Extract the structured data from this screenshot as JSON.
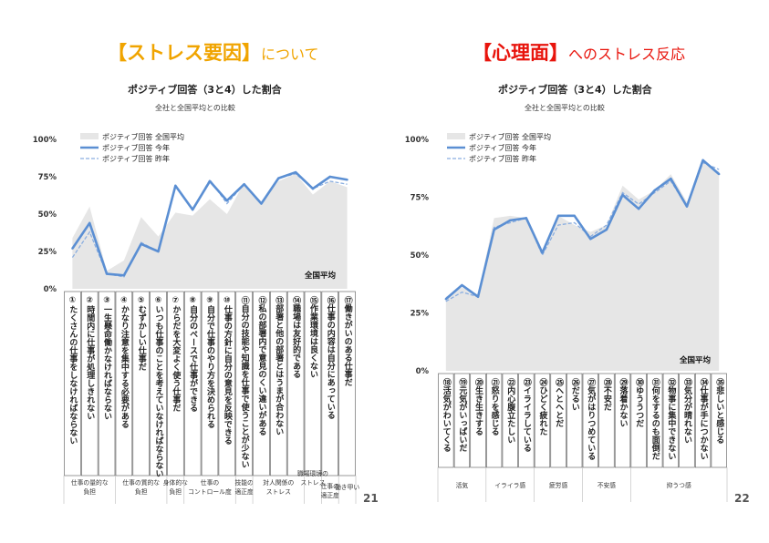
{
  "left": {
    "heading_strong": "【ストレス要因】",
    "heading_rest": "について",
    "chart_title": "ポジティブ回答（3と4）した割合",
    "chart_subtitle": "全社と全国平均との比較",
    "page_number": "21"
  },
  "right": {
    "heading_strong": "【心理面】",
    "heading_rest": "へのストレス反応",
    "chart_title": "ポジティブ回答（3と4）した割合",
    "chart_subtitle": "全社と全国平均との比較",
    "page_number": "22"
  },
  "colors": {
    "area": "#e6e6e6",
    "this_year": "#5b8fd3",
    "last_year": "#8aaee0",
    "text": "#222222"
  },
  "chart_data": [
    {
      "type": "line",
      "ylim": [
        0,
        100
      ],
      "yticks": [
        "0%",
        "25%",
        "50%",
        "75%",
        "100%"
      ],
      "annotation": "全国平均",
      "legend_position": "top-left",
      "series": [
        {
          "name": "ポジティブ回答 全国平均",
          "style": "area",
          "values": [
            34,
            55,
            12,
            19,
            48,
            35,
            51,
            49,
            60,
            50,
            71,
            58,
            72,
            77,
            63,
            72,
            68
          ]
        },
        {
          "name": "ポジティブ回答 今年",
          "style": "solid",
          "values": [
            27,
            44,
            10,
            9,
            30,
            25,
            69,
            53,
            72,
            59,
            70,
            57,
            74,
            78,
            67,
            75,
            73
          ]
        },
        {
          "name": "ポジティブ回答 昨年",
          "style": "dashed",
          "values": [
            21,
            38,
            10,
            8,
            31,
            25,
            69,
            53,
            73,
            57,
            70,
            57,
            74,
            77,
            67,
            72,
            70
          ]
        }
      ],
      "categories": [
        "①たくさんの仕事をしなければならない",
        "②時間内に仕事が処理しきれない",
        "③一生懸命働かなければならない",
        "④かなり注意を集中する必要がある",
        "⑤むずかしい仕事だ",
        "⑥いつも仕事のことを考えていなければならない",
        "⑦からだを大変よく使う仕事だ",
        "⑧自分のペースで仕事ができる",
        "⑨自分で仕事のやり方を決められる",
        "⑩仕事の方針に自分の意見を反映できる",
        "⑪自分の技能や知識を仕事で使うことが少ない",
        "⑫私の部署内で意見のくい違いがある",
        "⑬部署と他の部署とはうまが合わない",
        "⑭職場は友好的である",
        "⑮作業環境は良くない",
        "⑯仕事の内容は自分にあっている",
        "⑰働きがいのある仕事だ"
      ],
      "groups": [
        {
          "label": [
            "仕事の量的な",
            "負担"
          ],
          "from": 0,
          "to": 2
        },
        {
          "label": [
            "仕事の質的な",
            "負担"
          ],
          "from": 3,
          "to": 5
        },
        {
          "label": [
            "身体的な",
            "負担"
          ],
          "from": 6,
          "to": 6
        },
        {
          "label": [
            "仕事の",
            "コントロール度"
          ],
          "from": 7,
          "to": 9
        },
        {
          "label": [
            "技能の",
            "適正度"
          ],
          "from": 10,
          "to": 10
        },
        {
          "label": [
            "対人関係の",
            "ストレス"
          ],
          "from": 11,
          "to": 13
        },
        {
          "label": [
            "職場環境の",
            "ストレス"
          ],
          "from": 14,
          "to": 14
        },
        {
          "label": [
            "仕事の",
            "適正度"
          ],
          "from": 15,
          "to": 15
        },
        {
          "label": [
            "働き甲い"
          ],
          "from": 16,
          "to": 16
        }
      ]
    },
    {
      "type": "line",
      "ylim": [
        0,
        100
      ],
      "yticks": [
        "0%",
        "25%",
        "50%",
        "75%",
        "100%"
      ],
      "annotation": "全国平均",
      "legend_position": "top-left",
      "series": [
        {
          "name": "ポジティブ回答 全国平均",
          "style": "area",
          "values": [
            32,
            36,
            33,
            66,
            67,
            66,
            52,
            67,
            63,
            60,
            63,
            80,
            74,
            78,
            85,
            73,
            90,
            86
          ]
        },
        {
          "name": "ポジティブ回答 今年",
          "style": "solid",
          "values": [
            31,
            37,
            32,
            61,
            65,
            66,
            51,
            67,
            67,
            57,
            61,
            76,
            70,
            78,
            83,
            71,
            91,
            85
          ]
        },
        {
          "name": "ポジティブ回答 昨年",
          "style": "dashed",
          "values": [
            30,
            34,
            32,
            62,
            64,
            66,
            50,
            63,
            64,
            58,
            63,
            77,
            72,
            77,
            82,
            71,
            90,
            87
          ]
        }
      ],
      "categories": [
        "⑱活気がわいてくる",
        "⑲元気がいっぱいだ",
        "⑳生き生きする",
        "㉑怒りを感じる",
        "㉒内心腹立たしい",
        "㉓イライラしている",
        "㉔ひどく疲れた",
        "㉕へとへとだ",
        "㉖だるい",
        "㉗気がはりつめている",
        "㉘不安だ",
        "㉙落着かない",
        "㉚ゆううつだ",
        "㉛何をするのも面倒だ",
        "㉜物事に集中できない",
        "㉝気分が晴れない",
        "㉞仕事が手につかない",
        "㉟悲しいと感じる"
      ],
      "groups": [
        {
          "label": [
            "活気"
          ],
          "from": 0,
          "to": 2
        },
        {
          "label": [
            "イライラ感"
          ],
          "from": 3,
          "to": 5
        },
        {
          "label": [
            "疲労感"
          ],
          "from": 6,
          "to": 8
        },
        {
          "label": [
            "不安感"
          ],
          "from": 9,
          "to": 11
        },
        {
          "label": [
            "抑うつ感"
          ],
          "from": 12,
          "to": 17
        }
      ]
    }
  ]
}
